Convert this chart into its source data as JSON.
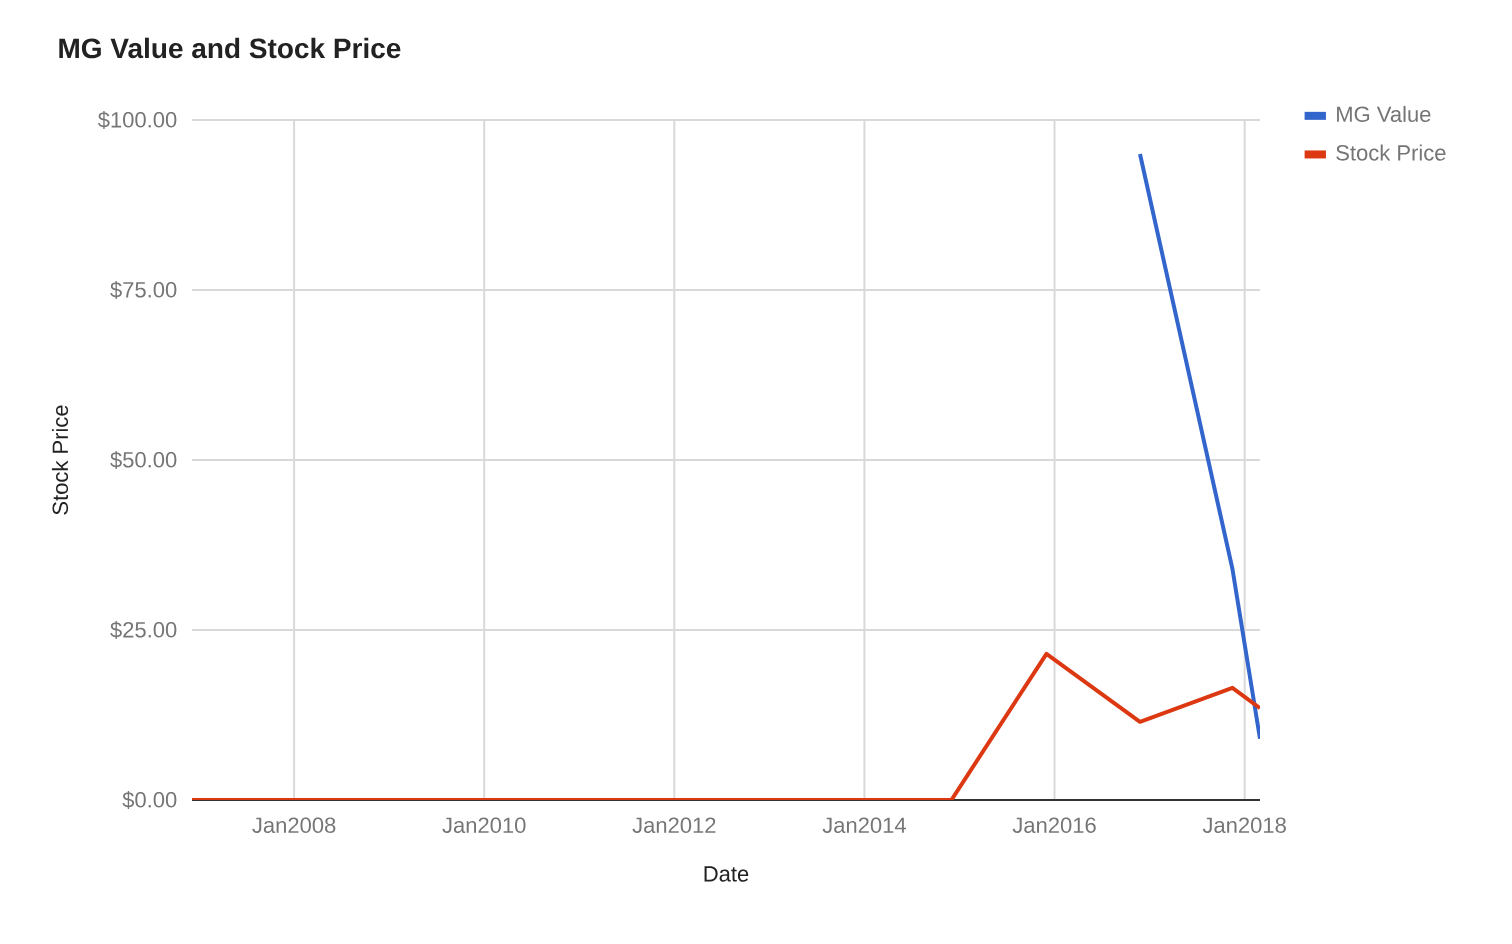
{
  "chart_data": {
    "type": "line",
    "title": "MG Value and Stock Price",
    "xlabel": "Date",
    "ylabel": "Stock Price",
    "x": [
      "2006-12-05",
      "2014-12-01",
      "2015-12-01",
      "2016-11-25",
      "2017-11-15",
      "2018-03-01"
    ],
    "series": [
      {
        "name": "MG Value",
        "color": "#3366cc",
        "values": [
          null,
          null,
          null,
          95,
          34,
          9
        ]
      },
      {
        "name": "Stock Price",
        "color": "#dc3912",
        "values": [
          0,
          0,
          21.5,
          11.5,
          16.5,
          13.5
        ]
      }
    ],
    "xlim": [
      "2006-12-05",
      "2018-03-01"
    ],
    "xticks": [
      {
        "value": "2008-01-01",
        "label": "Jan2008"
      },
      {
        "value": "2010-01-01",
        "label": "Jan2010"
      },
      {
        "value": "2012-01-01",
        "label": "Jan2012"
      },
      {
        "value": "2014-01-01",
        "label": "Jan2014"
      },
      {
        "value": "2016-01-01",
        "label": "Jan2016"
      },
      {
        "value": "2018-01-01",
        "label": "Jan2018"
      }
    ],
    "ylim": [
      0,
      100
    ],
    "yticks": [
      {
        "value": 0,
        "label": "$0.00"
      },
      {
        "value": 25,
        "label": "$25.00"
      },
      {
        "value": 50,
        "label": "$50.00"
      },
      {
        "value": 75,
        "label": "$75.00"
      },
      {
        "value": 100,
        "label": "$100.00"
      }
    ],
    "grid": true,
    "legend": "right",
    "line_style": "solid"
  }
}
